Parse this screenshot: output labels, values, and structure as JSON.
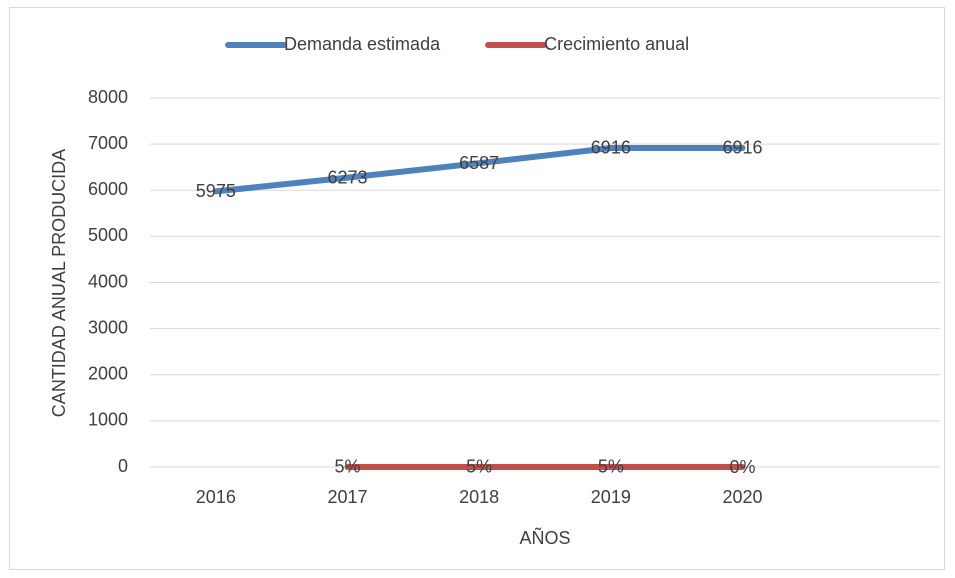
{
  "chart_data": {
    "type": "line",
    "x_label": "AÑOS",
    "y_label": "CANTIDAD ANUAL PRODUCIDA",
    "categories": [
      "2016",
      "2017",
      "2018",
      "2019",
      "2020",
      null
    ],
    "series": [
      {
        "name": "Demanda estimada",
        "color": "#4f81bd",
        "values": [
          5975,
          6273,
          6587,
          6916,
          6916,
          null
        ]
      },
      {
        "name": "Crecimiento anual",
        "color": "#c0504d",
        "values": [
          null,
          0.05,
          0.05,
          0.05,
          0,
          null
        ],
        "value_labels": [
          null,
          "5%",
          "5%",
          "5%",
          "0%",
          null
        ]
      }
    ],
    "ylim": [
      0,
      8000
    ],
    "yticks": [
      0,
      1000,
      2000,
      3000,
      4000,
      5000,
      6000,
      7000,
      8000
    ],
    "grid": true,
    "legend": "top"
  }
}
